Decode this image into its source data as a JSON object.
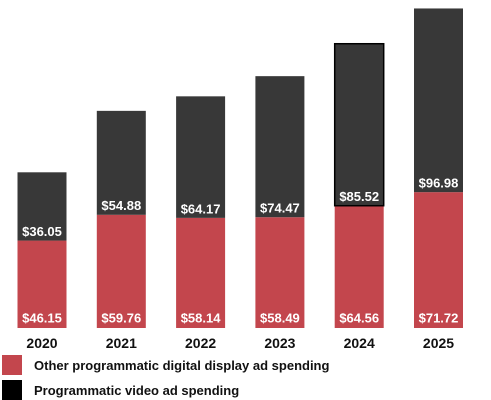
{
  "chart_data": {
    "type": "bar",
    "stacked": true,
    "categories": [
      "2020",
      "2021",
      "2022",
      "2023",
      "2024",
      "2025"
    ],
    "series": [
      {
        "name": "Other programmatic digital display ad spending",
        "color": "#C3464D",
        "values": [
          46.15,
          59.76,
          58.14,
          58.49,
          64.56,
          71.72
        ],
        "labels": [
          "$46.15",
          "$59.76",
          "$58.14",
          "$58.49",
          "$64.56",
          "$71.72"
        ]
      },
      {
        "name": "Programmatic video ad spending",
        "color": "#383838",
        "values": [
          36.05,
          54.88,
          64.17,
          74.47,
          85.52,
          96.98
        ],
        "labels": [
          "$36.05",
          "$54.88",
          "$64.17",
          "$74.47",
          "$85.52",
          "$96.98"
        ]
      }
    ],
    "title": "",
    "xlabel": "",
    "ylabel": "",
    "ylim": [
      0,
      170
    ],
    "grid": false,
    "legend": "bottom"
  },
  "legend_swatch_colors": [
    "#C3464D",
    "#000000"
  ]
}
